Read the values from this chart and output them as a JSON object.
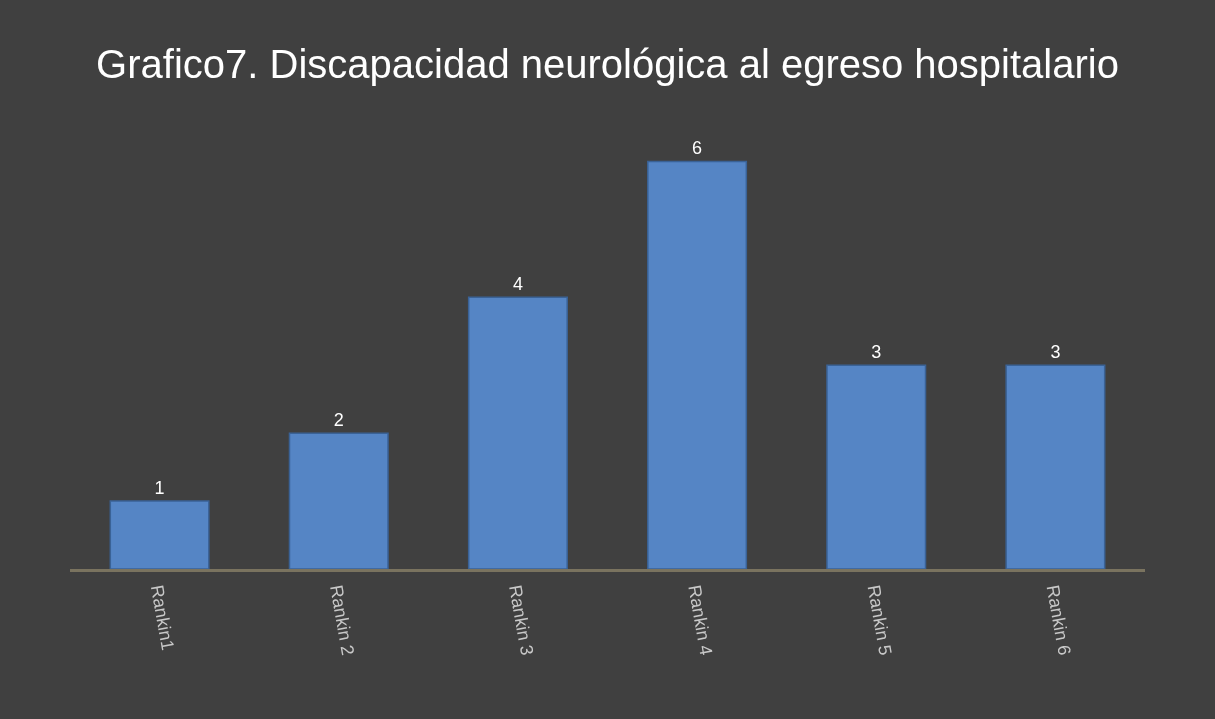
{
  "chart_data": {
    "type": "bar",
    "title": "Grafico7. Discapacidad neurológica al egreso hospitalario",
    "categories": [
      "Rankin1",
      "Rankin 2",
      "Rankin 3",
      "Rankin 4",
      "Rankin 5",
      "Rankin 6"
    ],
    "values": [
      1,
      2,
      4,
      6,
      3,
      3
    ],
    "color": "#5585c5",
    "data_labels": true,
    "grid": false,
    "legend": false
  }
}
